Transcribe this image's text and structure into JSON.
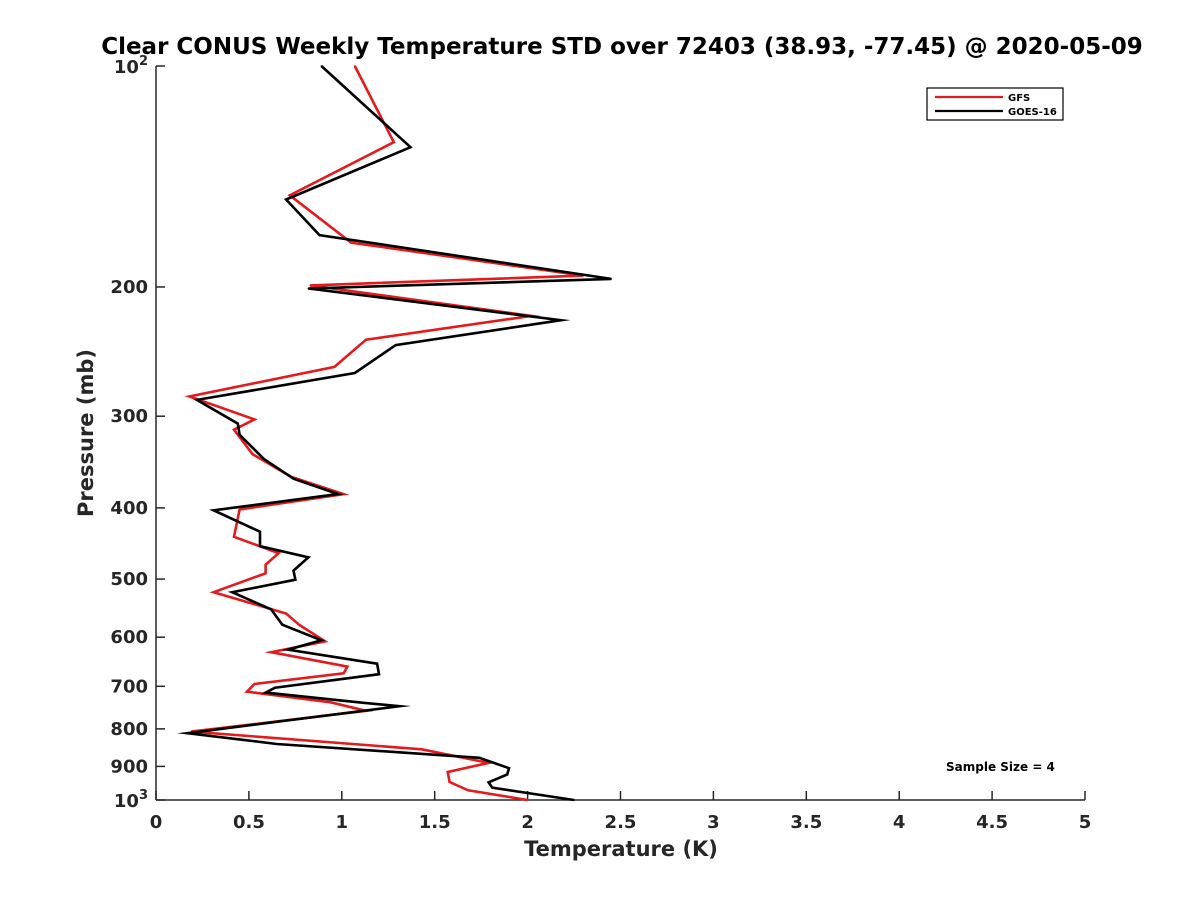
{
  "chart_data": {
    "type": "line",
    "title": "Clear CONUS Weekly Temperature STD over 72403 (38.93, -77.45) @ 2020-05-09",
    "xlabel": "Temperature (K)",
    "ylabel": "Pressure (mb)",
    "xlim": [
      0,
      5
    ],
    "ylim": [
      100,
      1000
    ],
    "y_scale": "log",
    "y_reversed": true,
    "xticks": [
      "0",
      "0.5",
      "1",
      "1.5",
      "2",
      "2.5",
      "3",
      "3.5",
      "4",
      "4.5",
      "5"
    ],
    "yticks": [
      {
        "value": 100,
        "base": "10",
        "exp": "2"
      },
      {
        "value": 200,
        "label": "200"
      },
      {
        "value": 300,
        "label": "300"
      },
      {
        "value": 400,
        "label": "400"
      },
      {
        "value": 500,
        "label": "500"
      },
      {
        "value": 600,
        "label": "600"
      },
      {
        "value": 700,
        "label": "700"
      },
      {
        "value": 800,
        "label": "800"
      },
      {
        "value": 900,
        "label": "900"
      },
      {
        "value": 1000,
        "base": "10",
        "exp": "3"
      }
    ],
    "grid": false,
    "legend_position": "top-right",
    "annotation": "Sample Size = 4",
    "series": [
      {
        "name": "GFS",
        "color": "#e41a1c",
        "points": [
          [
            1.07,
            100
          ],
          [
            1.28,
            127
          ],
          [
            0.72,
            150
          ],
          [
            1.05,
            174
          ],
          [
            2.3,
            193
          ],
          [
            0.83,
            199
          ],
          [
            2.02,
            219
          ],
          [
            1.13,
            236
          ],
          [
            0.96,
            257
          ],
          [
            0.18,
            282
          ],
          [
            0.53,
            303
          ],
          [
            0.42,
            313
          ],
          [
            0.52,
            338
          ],
          [
            0.73,
            363
          ],
          [
            1.01,
            383
          ],
          [
            0.45,
            402
          ],
          [
            0.42,
            438
          ],
          [
            0.66,
            461
          ],
          [
            0.59,
            478
          ],
          [
            0.59,
            491
          ],
          [
            0.31,
            521
          ],
          [
            0.7,
            557
          ],
          [
            0.77,
            577
          ],
          [
            0.91,
            608
          ],
          [
            0.62,
            629
          ],
          [
            1.03,
            658
          ],
          [
            1.01,
            672
          ],
          [
            0.53,
            695
          ],
          [
            0.49,
            712
          ],
          [
            0.94,
            736
          ],
          [
            1.13,
            756
          ],
          [
            0.19,
            807
          ],
          [
            1.43,
            853
          ],
          [
            1.79,
            890
          ],
          [
            1.57,
            916
          ],
          [
            1.58,
            945
          ],
          [
            1.68,
            970
          ],
          [
            2.0,
            1000
          ]
        ]
      },
      {
        "name": "GOES-16",
        "color": "#000000",
        "points": [
          [
            0.89,
            100
          ],
          [
            1.37,
            129
          ],
          [
            0.7,
            152
          ],
          [
            0.88,
            170
          ],
          [
            2.45,
            195
          ],
          [
            0.82,
            201
          ],
          [
            2.18,
            222
          ],
          [
            1.29,
            240
          ],
          [
            1.07,
            262
          ],
          [
            0.22,
            285
          ],
          [
            0.44,
            307
          ],
          [
            0.45,
            318
          ],
          [
            0.58,
            343
          ],
          [
            0.74,
            365
          ],
          [
            0.98,
            383
          ],
          [
            0.31,
            403
          ],
          [
            0.56,
            431
          ],
          [
            0.56,
            451
          ],
          [
            0.82,
            467
          ],
          [
            0.74,
            487
          ],
          [
            0.75,
            501
          ],
          [
            0.41,
            521
          ],
          [
            0.62,
            550
          ],
          [
            0.68,
            577
          ],
          [
            0.89,
            606
          ],
          [
            0.71,
            624
          ],
          [
            1.19,
            652
          ],
          [
            1.2,
            674
          ],
          [
            0.64,
            703
          ],
          [
            0.59,
            714
          ],
          [
            1.11,
            737
          ],
          [
            1.31,
            745
          ],
          [
            0.17,
            811
          ],
          [
            0.65,
            839
          ],
          [
            1.74,
            876
          ],
          [
            1.9,
            905
          ],
          [
            1.89,
            923
          ],
          [
            1.79,
            946
          ],
          [
            1.81,
            962
          ],
          [
            2.25,
            1000
          ]
        ]
      }
    ]
  }
}
